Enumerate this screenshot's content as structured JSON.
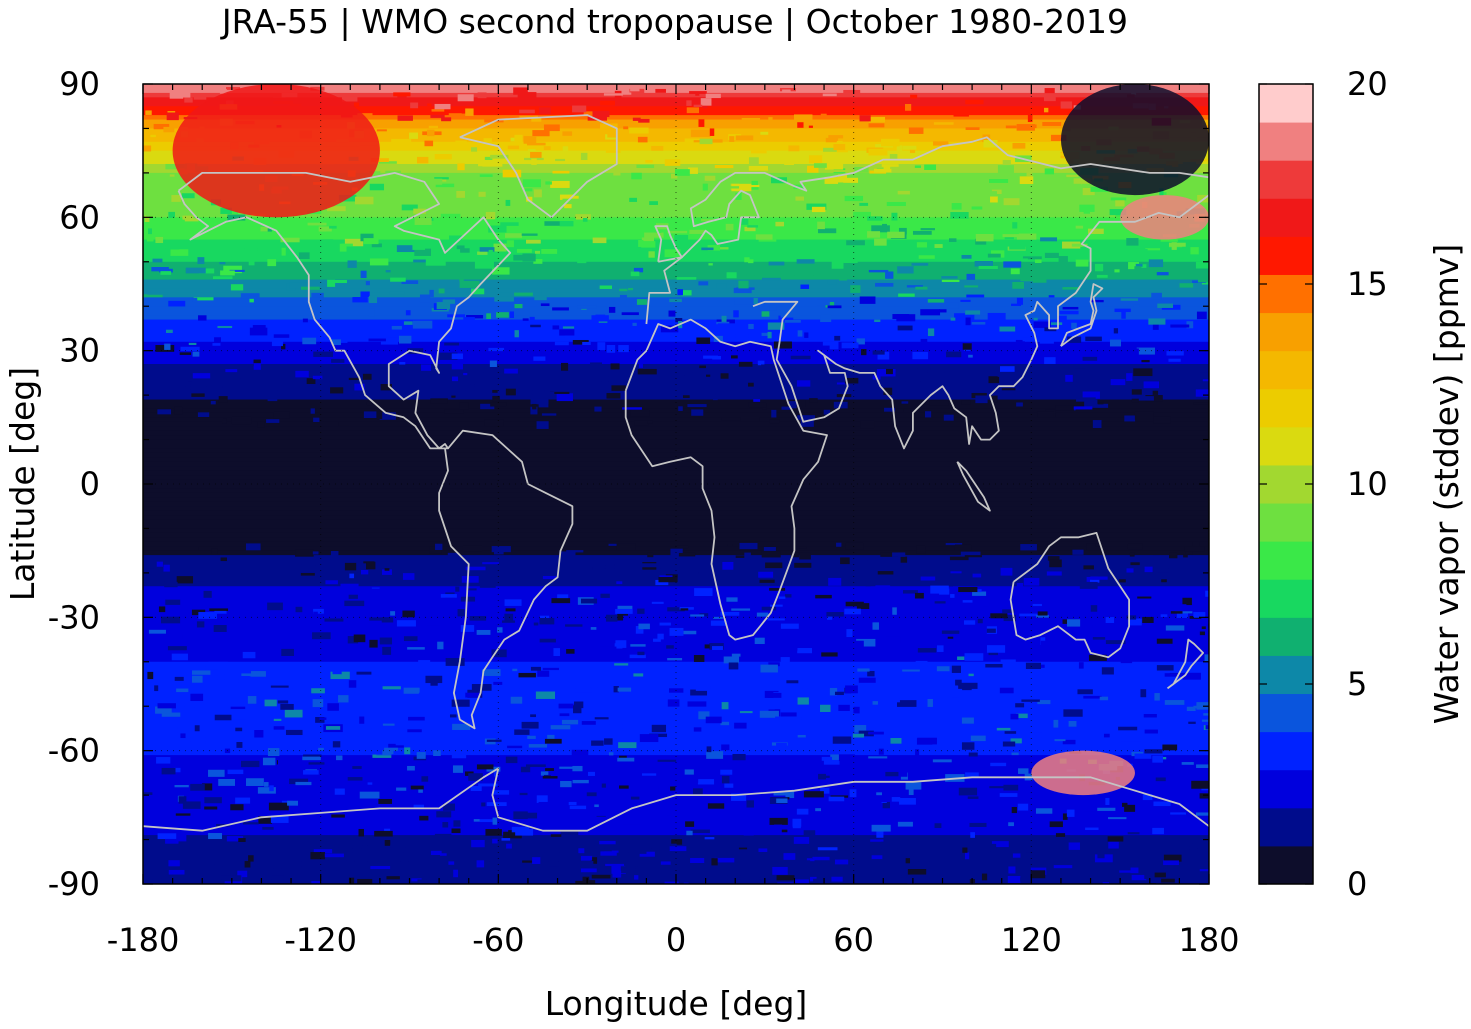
{
  "chart_data": {
    "type": "heatmap",
    "title": "JRA-55 | WMO second tropopause | October 1980-2019",
    "xlabel": "Longitude [deg]",
    "ylabel": "Latitude [deg]",
    "xlim": [
      -180,
      180
    ],
    "ylim": [
      -90,
      90
    ],
    "x_ticks": [
      "-180",
      "-120",
      "-60",
      "0",
      "60",
      "120",
      "180"
    ],
    "y_ticks": [
      "90",
      "60",
      "30",
      "0",
      "-30",
      "-60",
      "-90"
    ],
    "colorbar": {
      "label": "Water vapor (stddev) [ppmv]",
      "range": [
        0,
        20
      ],
      "ticks": [
        "20",
        "15",
        "10",
        "5",
        "0"
      ],
      "levels": [
        0,
        1,
        2,
        3,
        4,
        5,
        6,
        7,
        8,
        9,
        10,
        11,
        12,
        13,
        14,
        15,
        16,
        17,
        18,
        19,
        20
      ],
      "colors": [
        "#0d0d2b",
        "#000c8c",
        "#0000dd",
        "#0022ff",
        "#0a55dd",
        "#0d88a8",
        "#10b070",
        "#18d860",
        "#3ae848",
        "#6ee040",
        "#a2d830",
        "#dada10",
        "#eccc00",
        "#f4b800",
        "#f8a000",
        "#ff7000",
        "#ff1800",
        "#f01818",
        "#ee3a3a",
        "#f08080",
        "#ffcccc"
      ]
    },
    "latitude_profile": [
      {
        "lat": 90,
        "value": 20
      },
      {
        "lat": 80,
        "value": 14
      },
      {
        "lat": 70,
        "value": 10
      },
      {
        "lat": 60,
        "value": 9
      },
      {
        "lat": 50,
        "value": 7
      },
      {
        "lat": 40,
        "value": 4.5
      },
      {
        "lat": 30,
        "value": 2.5
      },
      {
        "lat": 22,
        "value": 1.2
      },
      {
        "lat": 10,
        "value": 0.3
      },
      {
        "lat": 0,
        "value": 0.2
      },
      {
        "lat": -10,
        "value": 0.3
      },
      {
        "lat": -15,
        "value": 0.8
      },
      {
        "lat": -20,
        "value": 1.8
      },
      {
        "lat": -30,
        "value": 2.5
      },
      {
        "lat": -50,
        "value": 3.5
      },
      {
        "lat": -65,
        "value": 2.8
      },
      {
        "lat": -75,
        "value": 2.2
      },
      {
        "lat": -90,
        "value": 1.5
      }
    ],
    "features": [
      {
        "lon": [
          -170,
          -100
        ],
        "lat": [
          60,
          90
        ],
        "value": 17
      },
      {
        "lon": [
          150,
          180
        ],
        "lat": [
          55,
          65
        ],
        "value": 19
      },
      {
        "lon": [
          130,
          180
        ],
        "lat": [
          65,
          90
        ],
        "value": 0.5
      },
      {
        "lon": [
          120,
          155
        ],
        "lat": [
          -70,
          -60
        ],
        "value": 19
      }
    ],
    "grid": true
  }
}
